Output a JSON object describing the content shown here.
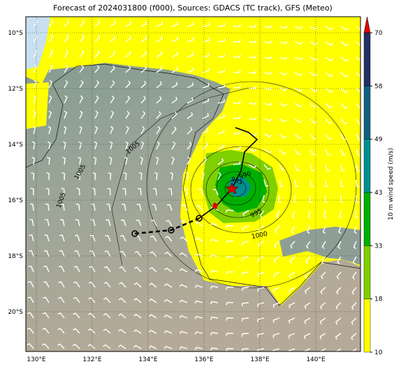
{
  "title": "Forecast of 2024031800 (f000), Sources: GDACS (TC track), GFS (Meteo)",
  "axes": {
    "x_ticks": [
      {
        "value": 130,
        "label": "130°E"
      },
      {
        "value": 132,
        "label": "132°E"
      },
      {
        "value": 134,
        "label": "134°E"
      },
      {
        "value": 136,
        "label": "136°E"
      },
      {
        "value": 138,
        "label": "138°E"
      },
      {
        "value": 140,
        "label": "140°E"
      }
    ],
    "y_ticks": [
      {
        "value": -10,
        "label": "10°S"
      },
      {
        "value": -12,
        "label": "12°S"
      },
      {
        "value": -14,
        "label": "14°S"
      },
      {
        "value": -16,
        "label": "16°S"
      },
      {
        "value": -18,
        "label": "18°S"
      },
      {
        "value": -20,
        "label": "20°S"
      }
    ]
  },
  "contour_labels": [
    "1005",
    "1005",
    "1005",
    "1000",
    "995",
    "990",
    "985"
  ],
  "colorbar": {
    "label": "10 m wind speed (m/s)",
    "ticks": [
      10,
      18,
      33,
      43,
      49,
      58,
      70
    ]
  }
}
